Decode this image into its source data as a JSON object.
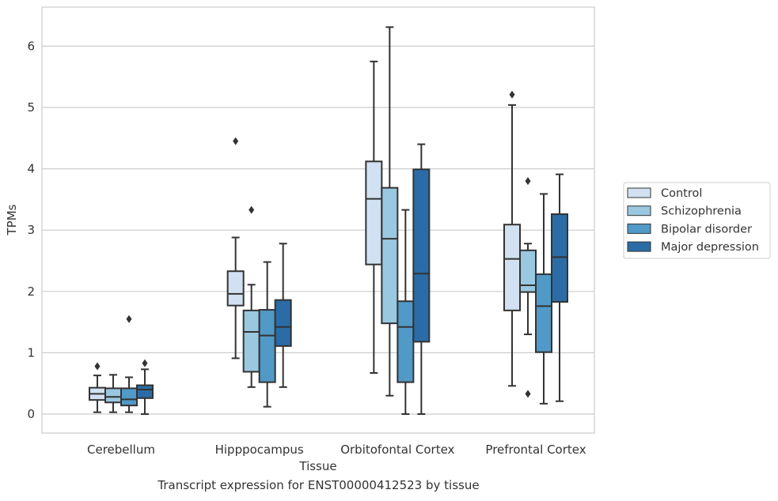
{
  "caption": "Transcript expression for ENST00000412523 by tissue",
  "chart_data": {
    "type": "box",
    "title": "",
    "xlabel": "Tissue",
    "ylabel": "TPMs",
    "ylim": [
      -0.3,
      6.5
    ],
    "yticks": [
      0,
      1,
      2,
      3,
      4,
      5,
      6
    ],
    "grid": "horizontal",
    "legend_position": "right",
    "categories": [
      "Cerebellum",
      "Hipppocampus",
      "Orbitofontal Cortex",
      "Prefrontal Cortex"
    ],
    "series": [
      {
        "name": "Control",
        "color": "#d1e1f1",
        "boxes": [
          {
            "whisker_low": 0.03,
            "q1": 0.23,
            "median": 0.33,
            "q3": 0.43,
            "whisker_high": 0.63,
            "outliers": [
              0.78
            ]
          },
          {
            "whisker_low": 0.91,
            "q1": 1.77,
            "median": 1.96,
            "q3": 2.33,
            "whisker_high": 2.88,
            "outliers": [
              4.45
            ]
          },
          {
            "whisker_low": 0.67,
            "q1": 2.44,
            "median": 3.51,
            "q3": 4.12,
            "whisker_high": 5.75,
            "outliers": []
          },
          {
            "whisker_low": 0.46,
            "q1": 1.69,
            "median": 2.53,
            "q3": 3.09,
            "whisker_high": 5.04,
            "outliers": [
              5.21
            ]
          }
        ]
      },
      {
        "name": "Schizophrenia",
        "color": "#9ac8e0",
        "boxes": [
          {
            "whisker_low": 0.03,
            "q1": 0.19,
            "median": 0.28,
            "q3": 0.42,
            "whisker_high": 0.64,
            "outliers": []
          },
          {
            "whisker_low": 0.44,
            "q1": 0.69,
            "median": 1.34,
            "q3": 1.69,
            "whisker_high": 2.11,
            "outliers": [
              3.33
            ]
          },
          {
            "whisker_low": 0.3,
            "q1": 1.48,
            "median": 2.86,
            "q3": 3.69,
            "whisker_high": 6.31,
            "outliers": []
          },
          {
            "whisker_low": 1.3,
            "q1": 1.99,
            "median": 2.1,
            "q3": 2.67,
            "whisker_high": 2.78,
            "outliers": [
              3.8,
              0.33
            ]
          }
        ]
      },
      {
        "name": "Bipolar disorder",
        "color": "#5199c6",
        "boxes": [
          {
            "whisker_low": 0.03,
            "q1": 0.14,
            "median": 0.24,
            "q3": 0.42,
            "whisker_high": 0.6,
            "outliers": [
              1.55
            ]
          },
          {
            "whisker_low": 0.12,
            "q1": 0.52,
            "median": 1.28,
            "q3": 1.7,
            "whisker_high": 2.48,
            "outliers": []
          },
          {
            "whisker_low": 0.0,
            "q1": 0.52,
            "median": 1.42,
            "q3": 1.84,
            "whisker_high": 3.33,
            "outliers": []
          },
          {
            "whisker_low": 0.17,
            "q1": 1.01,
            "median": 1.76,
            "q3": 2.28,
            "whisker_high": 3.59,
            "outliers": []
          }
        ]
      },
      {
        "name": "Major depression",
        "color": "#2b6ca6",
        "boxes": [
          {
            "whisker_low": 0.0,
            "q1": 0.26,
            "median": 0.4,
            "q3": 0.47,
            "whisker_high": 0.73,
            "outliers": [
              0.83
            ]
          },
          {
            "whisker_low": 0.44,
            "q1": 1.11,
            "median": 1.42,
            "q3": 1.86,
            "whisker_high": 2.78,
            "outliers": []
          },
          {
            "whisker_low": 0.0,
            "q1": 1.18,
            "median": 2.29,
            "q3": 3.99,
            "whisker_high": 4.4,
            "outliers": []
          },
          {
            "whisker_low": 0.21,
            "q1": 1.83,
            "median": 2.56,
            "q3": 3.26,
            "whisker_high": 3.91,
            "outliers": []
          }
        ]
      }
    ]
  }
}
